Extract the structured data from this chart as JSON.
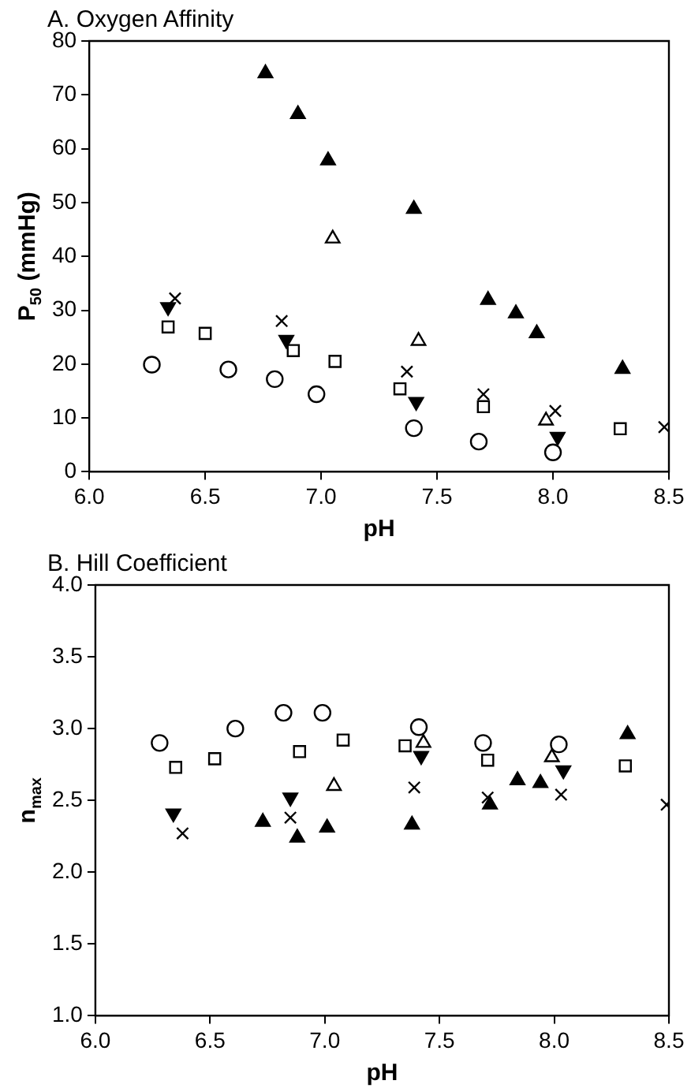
{
  "chart_data": [
    {
      "type": "scatter",
      "title": "A. Oxygen Affinity",
      "xlabel": "pH",
      "ylabel": "P$_{50}$ (mmHg)",
      "grid": false,
      "legend": false,
      "xlim": [
        6.0,
        8.5
      ],
      "xticks": [
        {
          "value": 6,
          "label": "6.0"
        },
        {
          "value": 6.5,
          "label": "6.5"
        },
        {
          "value": 7,
          "label": "7.0"
        },
        {
          "value": 7.5,
          "label": "7.5"
        },
        {
          "value": 8,
          "label": "8.0"
        },
        {
          "value": 8.5,
          "label": "8.5"
        }
      ],
      "ylim": [
        0,
        80
      ],
      "yticks": [
        0,
        10,
        20,
        30,
        40,
        50,
        60,
        70,
        80
      ],
      "series": [
        {
          "color": "#ffffff",
          "marker": "circle",
          "x": [
            6.27,
            6.6,
            6.8,
            6.98,
            7.4,
            7.68,
            8.0
          ],
          "values": [
            19.9,
            19.0,
            17.2,
            14.4,
            8.1,
            5.6,
            3.6
          ]
        },
        {
          "color": "#ffffff",
          "marker": "square",
          "x": [
            6.34,
            6.5,
            6.88,
            7.06,
            7.34,
            7.7,
            8.29
          ],
          "values": [
            26.9,
            25.7,
            22.5,
            20.5,
            15.4,
            12.1,
            8.0
          ]
        },
        {
          "color": "#000000",
          "marker": "triangle",
          "x": [
            6.76,
            6.9,
            7.03,
            7.4,
            7.72,
            7.84,
            7.93,
            8.3
          ],
          "values": [
            74.0,
            66.4,
            57.8,
            48.8,
            31.9,
            29.4,
            25.7,
            19.1
          ]
        },
        {
          "color": "#ffffff",
          "marker": "triangle",
          "x": [
            7.05,
            7.42,
            7.97
          ],
          "values": [
            43.3,
            24.3,
            9.5
          ]
        },
        {
          "color": "#000000",
          "marker": "triangle-down",
          "x": [
            6.34,
            6.85,
            7.41,
            8.02
          ],
          "values": [
            30.6,
            24.5,
            13.0,
            6.5
          ]
        },
        {
          "color": "#000000",
          "marker": "cross",
          "x": [
            6.37,
            6.83,
            7.37,
            7.7,
            8.01,
            8.48
          ],
          "values": [
            32.2,
            28.0,
            18.6,
            14.4,
            11.3,
            8.3
          ]
        }
      ]
    },
    {
      "type": "scatter",
      "title": "B. Hill Coefficient",
      "xlabel": "pH",
      "ylabel": "n$_{max}$",
      "grid": false,
      "legend": false,
      "xlim": [
        6.0,
        8.5
      ],
      "xticks": [
        {
          "value": 6,
          "label": "6.0"
        },
        {
          "value": 6.5,
          "label": "6.5"
        },
        {
          "value": 7,
          "label": "7.0"
        },
        {
          "value": 7.5,
          "label": "7.5"
        },
        {
          "value": 8,
          "label": "8.0"
        },
        {
          "value": 8.5,
          "label": "8.5"
        }
      ],
      "ylim": [
        1.0,
        4.0
      ],
      "yticks": [
        {
          "value": 1,
          "label": "1.0"
        },
        1.5,
        {
          "value": 2,
          "label": "2.0"
        },
        2.5,
        {
          "value": 3,
          "label": "3.0"
        },
        3.5,
        {
          "value": 4,
          "label": "4.0"
        }
      ],
      "series": [
        {
          "color": "#ffffff",
          "marker": "circle",
          "x": [
            6.28,
            6.61,
            6.82,
            6.99,
            7.41,
            7.69,
            8.02
          ],
          "values": [
            2.9,
            3.0,
            3.11,
            3.11,
            3.01,
            2.9,
            2.89
          ]
        },
        {
          "color": "#ffffff",
          "marker": "square",
          "x": [
            6.35,
            6.52,
            6.89,
            7.08,
            7.35,
            7.71,
            8.31
          ],
          "values": [
            2.73,
            2.79,
            2.84,
            2.92,
            2.88,
            2.78,
            2.74
          ]
        },
        {
          "color": "#000000",
          "marker": "triangle",
          "x": [
            6.73,
            6.88,
            7.01,
            7.38,
            7.72,
            7.84,
            7.94,
            8.32
          ],
          "values": [
            2.35,
            2.24,
            2.31,
            2.33,
            2.47,
            2.64,
            2.62,
            2.96
          ]
        },
        {
          "color": "#ffffff",
          "marker": "triangle",
          "x": [
            7.04,
            7.43,
            7.99
          ],
          "values": [
            2.6,
            2.9,
            2.8
          ]
        },
        {
          "color": "#000000",
          "marker": "triangle-down",
          "x": [
            6.34,
            6.85,
            7.42,
            8.04
          ],
          "values": [
            2.41,
            2.52,
            2.81,
            2.71
          ]
        },
        {
          "color": "#000000",
          "marker": "cross",
          "x": [
            6.38,
            6.85,
            7.39,
            7.71,
            8.03,
            8.49
          ],
          "values": [
            2.27,
            2.38,
            2.59,
            2.52,
            2.54,
            2.47
          ]
        }
      ]
    }
  ]
}
